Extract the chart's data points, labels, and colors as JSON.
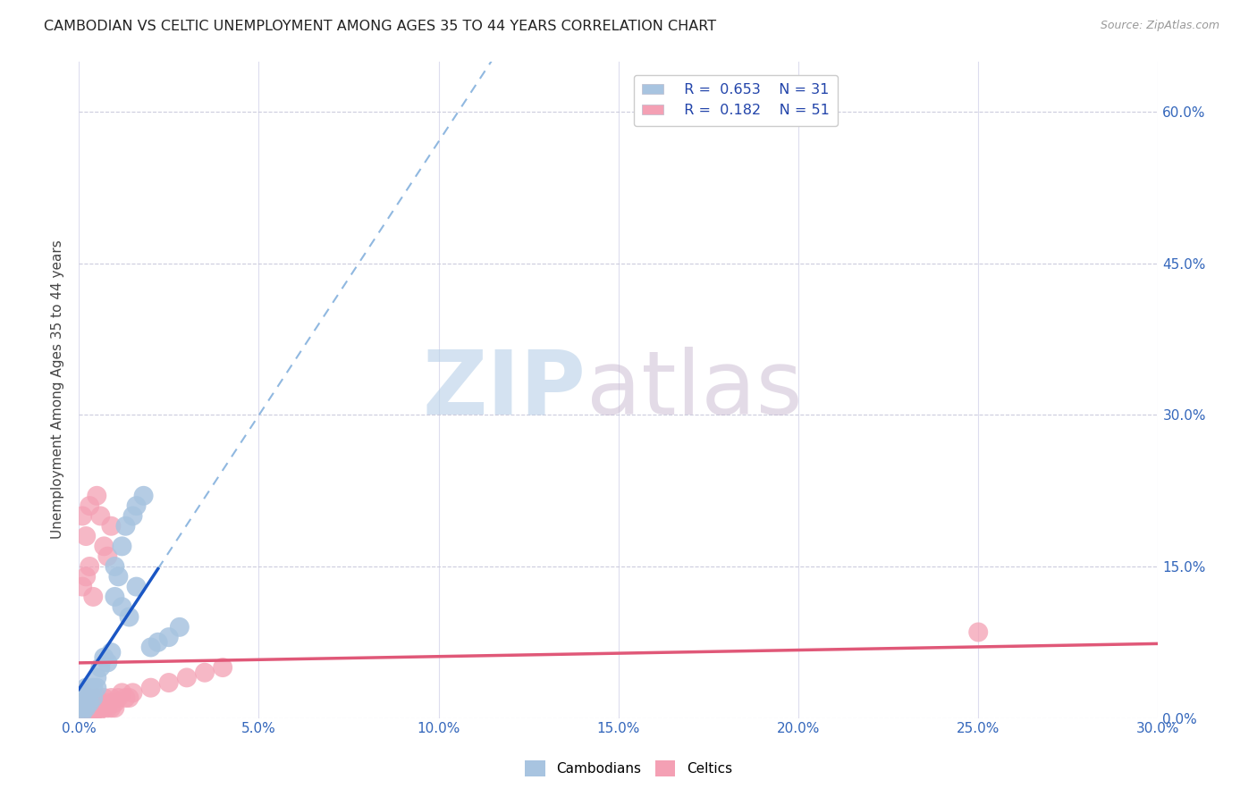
{
  "title": "CAMBODIAN VS CELTIC UNEMPLOYMENT AMONG AGES 35 TO 44 YEARS CORRELATION CHART",
  "source": "Source: ZipAtlas.com",
  "ylabel_label": "Unemployment Among Ages 35 to 44 years",
  "xlim": [
    0,
    0.3
  ],
  "ylim": [
    0,
    0.65
  ],
  "legend_cambodian_R": "0.653",
  "legend_cambodian_N": "31",
  "legend_celtic_R": "0.182",
  "legend_celtic_N": "51",
  "cambodian_color": "#a8c4e0",
  "celtic_color": "#f4a0b4",
  "trendline_cambodian_color": "#1a56c4",
  "trendline_celtic_color": "#e05878",
  "trendline_cambodian_dashed_color": "#90b8e0",
  "cam_x": [
    0.001,
    0.001,
    0.001,
    0.002,
    0.002,
    0.002,
    0.003,
    0.003,
    0.004,
    0.004,
    0.005,
    0.005,
    0.006,
    0.007,
    0.008,
    0.009,
    0.01,
    0.011,
    0.012,
    0.013,
    0.015,
    0.016,
    0.018,
    0.02,
    0.022,
    0.025,
    0.028,
    0.01,
    0.012,
    0.014,
    0.016
  ],
  "cam_y": [
    0.005,
    0.01,
    0.015,
    0.01,
    0.02,
    0.03,
    0.015,
    0.025,
    0.02,
    0.03,
    0.03,
    0.04,
    0.05,
    0.06,
    0.055,
    0.065,
    0.15,
    0.14,
    0.17,
    0.19,
    0.2,
    0.21,
    0.22,
    0.07,
    0.075,
    0.08,
    0.09,
    0.12,
    0.11,
    0.1,
    0.13
  ],
  "cel_x": [
    0.001,
    0.001,
    0.001,
    0.001,
    0.001,
    0.002,
    0.002,
    0.002,
    0.002,
    0.003,
    0.003,
    0.003,
    0.004,
    0.004,
    0.004,
    0.005,
    0.005,
    0.005,
    0.006,
    0.006,
    0.007,
    0.007,
    0.008,
    0.008,
    0.009,
    0.009,
    0.01,
    0.01,
    0.011,
    0.012,
    0.013,
    0.014,
    0.015,
    0.02,
    0.025,
    0.03,
    0.035,
    0.04,
    0.001,
    0.002,
    0.003,
    0.001,
    0.002,
    0.003,
    0.004,
    0.25,
    0.005,
    0.006,
    0.007,
    0.008,
    0.009
  ],
  "cel_y": [
    0.005,
    0.01,
    0.015,
    0.02,
    0.025,
    0.005,
    0.01,
    0.015,
    0.02,
    0.005,
    0.01,
    0.02,
    0.005,
    0.01,
    0.015,
    0.005,
    0.01,
    0.02,
    0.01,
    0.015,
    0.01,
    0.02,
    0.01,
    0.015,
    0.01,
    0.02,
    0.01,
    0.015,
    0.02,
    0.025,
    0.02,
    0.02,
    0.025,
    0.03,
    0.035,
    0.04,
    0.045,
    0.05,
    0.2,
    0.18,
    0.21,
    0.13,
    0.14,
    0.15,
    0.12,
    0.085,
    0.22,
    0.2,
    0.17,
    0.16,
    0.19
  ]
}
